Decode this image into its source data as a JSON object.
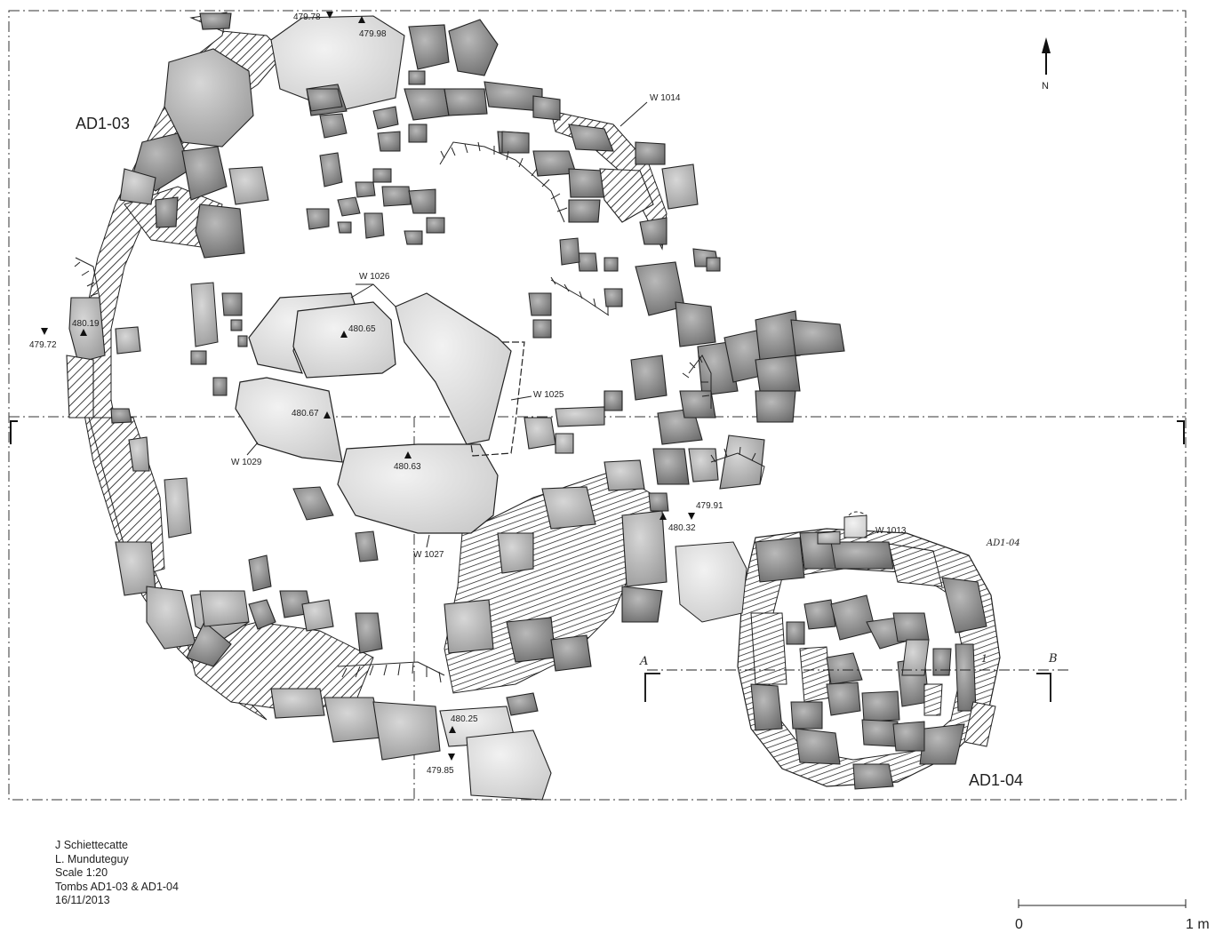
{
  "tombs": {
    "ad103": "AD1-03",
    "ad104": "AD1-04",
    "ad104_handwritten": "AD1-04"
  },
  "north": "N",
  "walls": {
    "w1013": "W 1013",
    "w1014": "W 1014",
    "w1025": "W 1025",
    "w1026": "W 1026",
    "w1027": "W 1027",
    "w1029": "W 1029"
  },
  "elevations": {
    "e47978": "479.78",
    "e47998": "479.98",
    "e48019": "480.19",
    "e47972": "479.72",
    "e48065": "480.65",
    "e48067": "480.67",
    "e48063": "480.63",
    "e47991": "479.91",
    "e48032": "480.32",
    "e48025": "480.25",
    "e47985": "479.85"
  },
  "section": {
    "a": "A",
    "b": "B",
    "mark": "1"
  },
  "credits": {
    "author1": "J Schiettecatte",
    "author2": "L. Munduteguy",
    "scale": "Scale 1:20",
    "subject": "Tombs AD1-03 & AD1-04",
    "date": "16/11/2013"
  },
  "scalebar": {
    "start": "0",
    "end": "1 m"
  }
}
